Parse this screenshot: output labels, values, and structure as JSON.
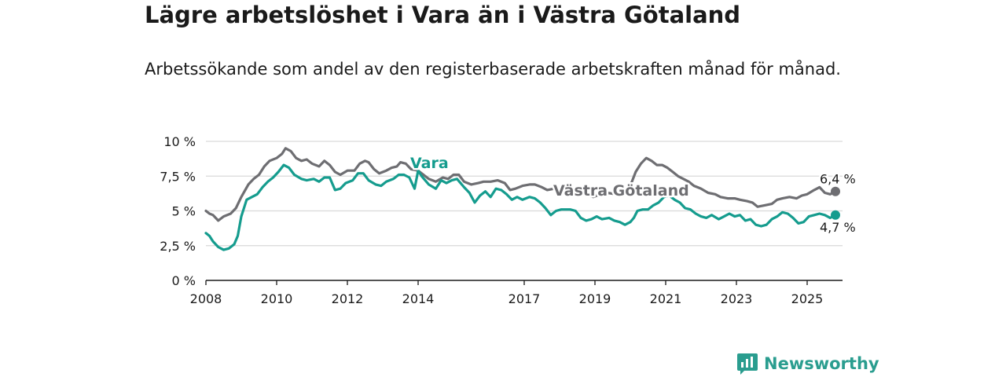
{
  "header": {
    "title": "Lägre arbetslöshet i Vara än i Västra Götaland",
    "subtitle": "Arbetssökande som andel av den registerbaserade arbetskraften månad för månad."
  },
  "brand": {
    "name": "Newsworthy"
  },
  "colors": {
    "vara": "#159c8e",
    "vg": "#6e6e72",
    "grid": "#d9d9d9",
    "axis": "#1a1a1a"
  },
  "chart_data": {
    "type": "line",
    "title": "Lägre arbetslöshet i Vara än i Västra Götaland",
    "subtitle": "Arbetssökande som andel av den registerbaserade arbetskraften månad för månad.",
    "xlim": [
      2008,
      2026
    ],
    "ylim": [
      0,
      10
    ],
    "grid": true,
    "y_ticks": [
      {
        "value": 0,
        "label": "0 %"
      },
      {
        "value": 2.5,
        "label": "2,5 %"
      },
      {
        "value": 5,
        "label": "5 %"
      },
      {
        "value": 7.5,
        "label": "7,5 %"
      },
      {
        "value": 10,
        "label": "10 %"
      }
    ],
    "x_ticks": [
      {
        "value": 2008,
        "label": "2008"
      },
      {
        "value": 2010,
        "label": "2010"
      },
      {
        "value": 2012,
        "label": "2012"
      },
      {
        "value": 2014,
        "label": "2014"
      },
      {
        "value": 2017,
        "label": "2017"
      },
      {
        "value": 2019,
        "label": "2019"
      },
      {
        "value": 2021,
        "label": "2021"
      },
      {
        "value": 2023,
        "label": "2023"
      },
      {
        "value": 2025,
        "label": "2025"
      }
    ],
    "series": [
      {
        "name": "Västra Götaland",
        "label": "Västra Götaland",
        "end_label": "6,4 %",
        "points": [
          [
            2008.0,
            5.0
          ],
          [
            2008.1,
            4.8
          ],
          [
            2008.2,
            4.7
          ],
          [
            2008.35,
            4.3
          ],
          [
            2008.5,
            4.6
          ],
          [
            2008.7,
            4.8
          ],
          [
            2008.85,
            5.2
          ],
          [
            2009.0,
            6.0
          ],
          [
            2009.2,
            6.9
          ],
          [
            2009.35,
            7.3
          ],
          [
            2009.5,
            7.6
          ],
          [
            2009.65,
            8.2
          ],
          [
            2009.8,
            8.6
          ],
          [
            2010.0,
            8.8
          ],
          [
            2010.15,
            9.1
          ],
          [
            2010.25,
            9.5
          ],
          [
            2010.4,
            9.3
          ],
          [
            2010.55,
            8.8
          ],
          [
            2010.7,
            8.6
          ],
          [
            2010.85,
            8.7
          ],
          [
            2011.0,
            8.4
          ],
          [
            2011.2,
            8.2
          ],
          [
            2011.35,
            8.6
          ],
          [
            2011.5,
            8.3
          ],
          [
            2011.65,
            7.8
          ],
          [
            2011.8,
            7.6
          ],
          [
            2012.0,
            7.9
          ],
          [
            2012.2,
            7.9
          ],
          [
            2012.35,
            8.4
          ],
          [
            2012.5,
            8.6
          ],
          [
            2012.6,
            8.5
          ],
          [
            2012.75,
            8.0
          ],
          [
            2012.9,
            7.7
          ],
          [
            2013.1,
            7.9
          ],
          [
            2013.25,
            8.1
          ],
          [
            2013.4,
            8.2
          ],
          [
            2013.5,
            8.5
          ],
          [
            2013.65,
            8.4
          ],
          [
            2013.8,
            8.0
          ],
          [
            2014.0,
            7.9
          ],
          [
            2014.15,
            7.6
          ],
          [
            2014.3,
            7.3
          ],
          [
            2014.5,
            7.1
          ],
          [
            2014.7,
            7.4
          ],
          [
            2014.85,
            7.3
          ],
          [
            2015.0,
            7.6
          ],
          [
            2015.15,
            7.6
          ],
          [
            2015.3,
            7.1
          ],
          [
            2015.5,
            6.9
          ],
          [
            2015.7,
            7.0
          ],
          [
            2015.85,
            7.1
          ],
          [
            2016.05,
            7.1
          ],
          [
            2016.25,
            7.2
          ],
          [
            2016.45,
            7.0
          ],
          [
            2016.6,
            6.5
          ],
          [
            2016.75,
            6.6
          ],
          [
            2016.95,
            6.8
          ],
          [
            2017.15,
            6.9
          ],
          [
            2017.3,
            6.9
          ],
          [
            2017.5,
            6.7
          ],
          [
            2017.65,
            6.5
          ],
          [
            2017.85,
            6.6
          ],
          [
            2018.05,
            6.4
          ],
          [
            2018.25,
            6.3
          ],
          [
            2018.5,
            6.1
          ],
          [
            2018.75,
            6.2
          ],
          [
            2018.95,
            6.0
          ],
          [
            2019.15,
            6.2
          ],
          [
            2019.35,
            6.3
          ],
          [
            2019.6,
            6.2
          ],
          [
            2019.85,
            6.4
          ],
          [
            2020.0,
            6.8
          ],
          [
            2020.15,
            7.8
          ],
          [
            2020.3,
            8.4
          ],
          [
            2020.45,
            8.8
          ],
          [
            2020.6,
            8.6
          ],
          [
            2020.75,
            8.3
          ],
          [
            2020.9,
            8.3
          ],
          [
            2021.05,
            8.1
          ],
          [
            2021.2,
            7.8
          ],
          [
            2021.35,
            7.5
          ],
          [
            2021.5,
            7.3
          ],
          [
            2021.65,
            7.1
          ],
          [
            2021.8,
            6.8
          ],
          [
            2022.0,
            6.6
          ],
          [
            2022.2,
            6.3
          ],
          [
            2022.4,
            6.2
          ],
          [
            2022.55,
            6.0
          ],
          [
            2022.75,
            5.9
          ],
          [
            2022.95,
            5.9
          ],
          [
            2023.1,
            5.8
          ],
          [
            2023.3,
            5.7
          ],
          [
            2023.45,
            5.6
          ],
          [
            2023.6,
            5.3
          ],
          [
            2023.8,
            5.4
          ],
          [
            2024.0,
            5.5
          ],
          [
            2024.15,
            5.8
          ],
          [
            2024.3,
            5.9
          ],
          [
            2024.5,
            6.0
          ],
          [
            2024.7,
            5.9
          ],
          [
            2024.85,
            6.1
          ],
          [
            2025.0,
            6.2
          ],
          [
            2025.2,
            6.5
          ],
          [
            2025.35,
            6.7
          ],
          [
            2025.5,
            6.3
          ],
          [
            2025.65,
            6.2
          ],
          [
            2025.8,
            6.4
          ]
        ]
      },
      {
        "name": "Vara",
        "label": "Vara",
        "end_label": "4,7 %",
        "points": [
          [
            2008.0,
            3.4
          ],
          [
            2008.1,
            3.2
          ],
          [
            2008.2,
            2.8
          ],
          [
            2008.35,
            2.4
          ],
          [
            2008.5,
            2.2
          ],
          [
            2008.65,
            2.3
          ],
          [
            2008.8,
            2.6
          ],
          [
            2008.9,
            3.2
          ],
          [
            2009.0,
            4.6
          ],
          [
            2009.15,
            5.8
          ],
          [
            2009.3,
            6.0
          ],
          [
            2009.45,
            6.2
          ],
          [
            2009.6,
            6.7
          ],
          [
            2009.75,
            7.1
          ],
          [
            2009.9,
            7.4
          ],
          [
            2010.05,
            7.8
          ],
          [
            2010.2,
            8.3
          ],
          [
            2010.35,
            8.1
          ],
          [
            2010.5,
            7.6
          ],
          [
            2010.7,
            7.3
          ],
          [
            2010.85,
            7.2
          ],
          [
            2011.05,
            7.3
          ],
          [
            2011.2,
            7.1
          ],
          [
            2011.35,
            7.4
          ],
          [
            2011.5,
            7.4
          ],
          [
            2011.65,
            6.5
          ],
          [
            2011.8,
            6.6
          ],
          [
            2011.95,
            7.0
          ],
          [
            2012.15,
            7.2
          ],
          [
            2012.3,
            7.7
          ],
          [
            2012.45,
            7.7
          ],
          [
            2012.6,
            7.2
          ],
          [
            2012.8,
            6.9
          ],
          [
            2012.95,
            6.8
          ],
          [
            2013.1,
            7.1
          ],
          [
            2013.3,
            7.3
          ],
          [
            2013.45,
            7.6
          ],
          [
            2013.6,
            7.6
          ],
          [
            2013.75,
            7.4
          ],
          [
            2013.9,
            6.6
          ],
          [
            2014.0,
            7.9
          ],
          [
            2014.1,
            7.5
          ],
          [
            2014.3,
            6.9
          ],
          [
            2014.5,
            6.6
          ],
          [
            2014.65,
            7.2
          ],
          [
            2014.8,
            7.0
          ],
          [
            2014.95,
            7.2
          ],
          [
            2015.1,
            7.3
          ],
          [
            2015.3,
            6.7
          ],
          [
            2015.45,
            6.3
          ],
          [
            2015.6,
            5.6
          ],
          [
            2015.75,
            6.1
          ],
          [
            2015.9,
            6.4
          ],
          [
            2016.05,
            6.0
          ],
          [
            2016.2,
            6.6
          ],
          [
            2016.35,
            6.5
          ],
          [
            2016.5,
            6.2
          ],
          [
            2016.65,
            5.8
          ],
          [
            2016.8,
            6.0
          ],
          [
            2016.95,
            5.8
          ],
          [
            2017.15,
            6.0
          ],
          [
            2017.3,
            5.9
          ],
          [
            2017.45,
            5.6
          ],
          [
            2017.6,
            5.2
          ],
          [
            2017.75,
            4.7
          ],
          [
            2017.9,
            5.0
          ],
          [
            2018.05,
            5.1
          ],
          [
            2018.3,
            5.1
          ],
          [
            2018.45,
            5.0
          ],
          [
            2018.6,
            4.5
          ],
          [
            2018.75,
            4.3
          ],
          [
            2018.9,
            4.4
          ],
          [
            2019.05,
            4.6
          ],
          [
            2019.2,
            4.4
          ],
          [
            2019.4,
            4.5
          ],
          [
            2019.55,
            4.3
          ],
          [
            2019.7,
            4.2
          ],
          [
            2019.85,
            4.0
          ],
          [
            2020.0,
            4.2
          ],
          [
            2020.1,
            4.5
          ],
          [
            2020.2,
            5.0
          ],
          [
            2020.35,
            5.1
          ],
          [
            2020.5,
            5.1
          ],
          [
            2020.65,
            5.4
          ],
          [
            2020.8,
            5.6
          ],
          [
            2020.95,
            6.0
          ],
          [
            2021.1,
            6.1
          ],
          [
            2021.25,
            5.8
          ],
          [
            2021.4,
            5.6
          ],
          [
            2021.55,
            5.2
          ],
          [
            2021.7,
            5.1
          ],
          [
            2021.85,
            4.8
          ],
          [
            2022.0,
            4.6
          ],
          [
            2022.15,
            4.5
          ],
          [
            2022.3,
            4.7
          ],
          [
            2022.5,
            4.4
          ],
          [
            2022.65,
            4.6
          ],
          [
            2022.8,
            4.8
          ],
          [
            2022.95,
            4.6
          ],
          [
            2023.1,
            4.7
          ],
          [
            2023.25,
            4.3
          ],
          [
            2023.4,
            4.4
          ],
          [
            2023.55,
            4.0
          ],
          [
            2023.7,
            3.9
          ],
          [
            2023.85,
            4.0
          ],
          [
            2024.0,
            4.4
          ],
          [
            2024.15,
            4.6
          ],
          [
            2024.3,
            4.9
          ],
          [
            2024.45,
            4.8
          ],
          [
            2024.6,
            4.5
          ],
          [
            2024.75,
            4.1
          ],
          [
            2024.9,
            4.2
          ],
          [
            2025.05,
            4.6
          ],
          [
            2025.2,
            4.7
          ],
          [
            2025.35,
            4.8
          ],
          [
            2025.5,
            4.7
          ],
          [
            2025.65,
            4.5
          ],
          [
            2025.8,
            4.7
          ]
        ]
      }
    ]
  }
}
